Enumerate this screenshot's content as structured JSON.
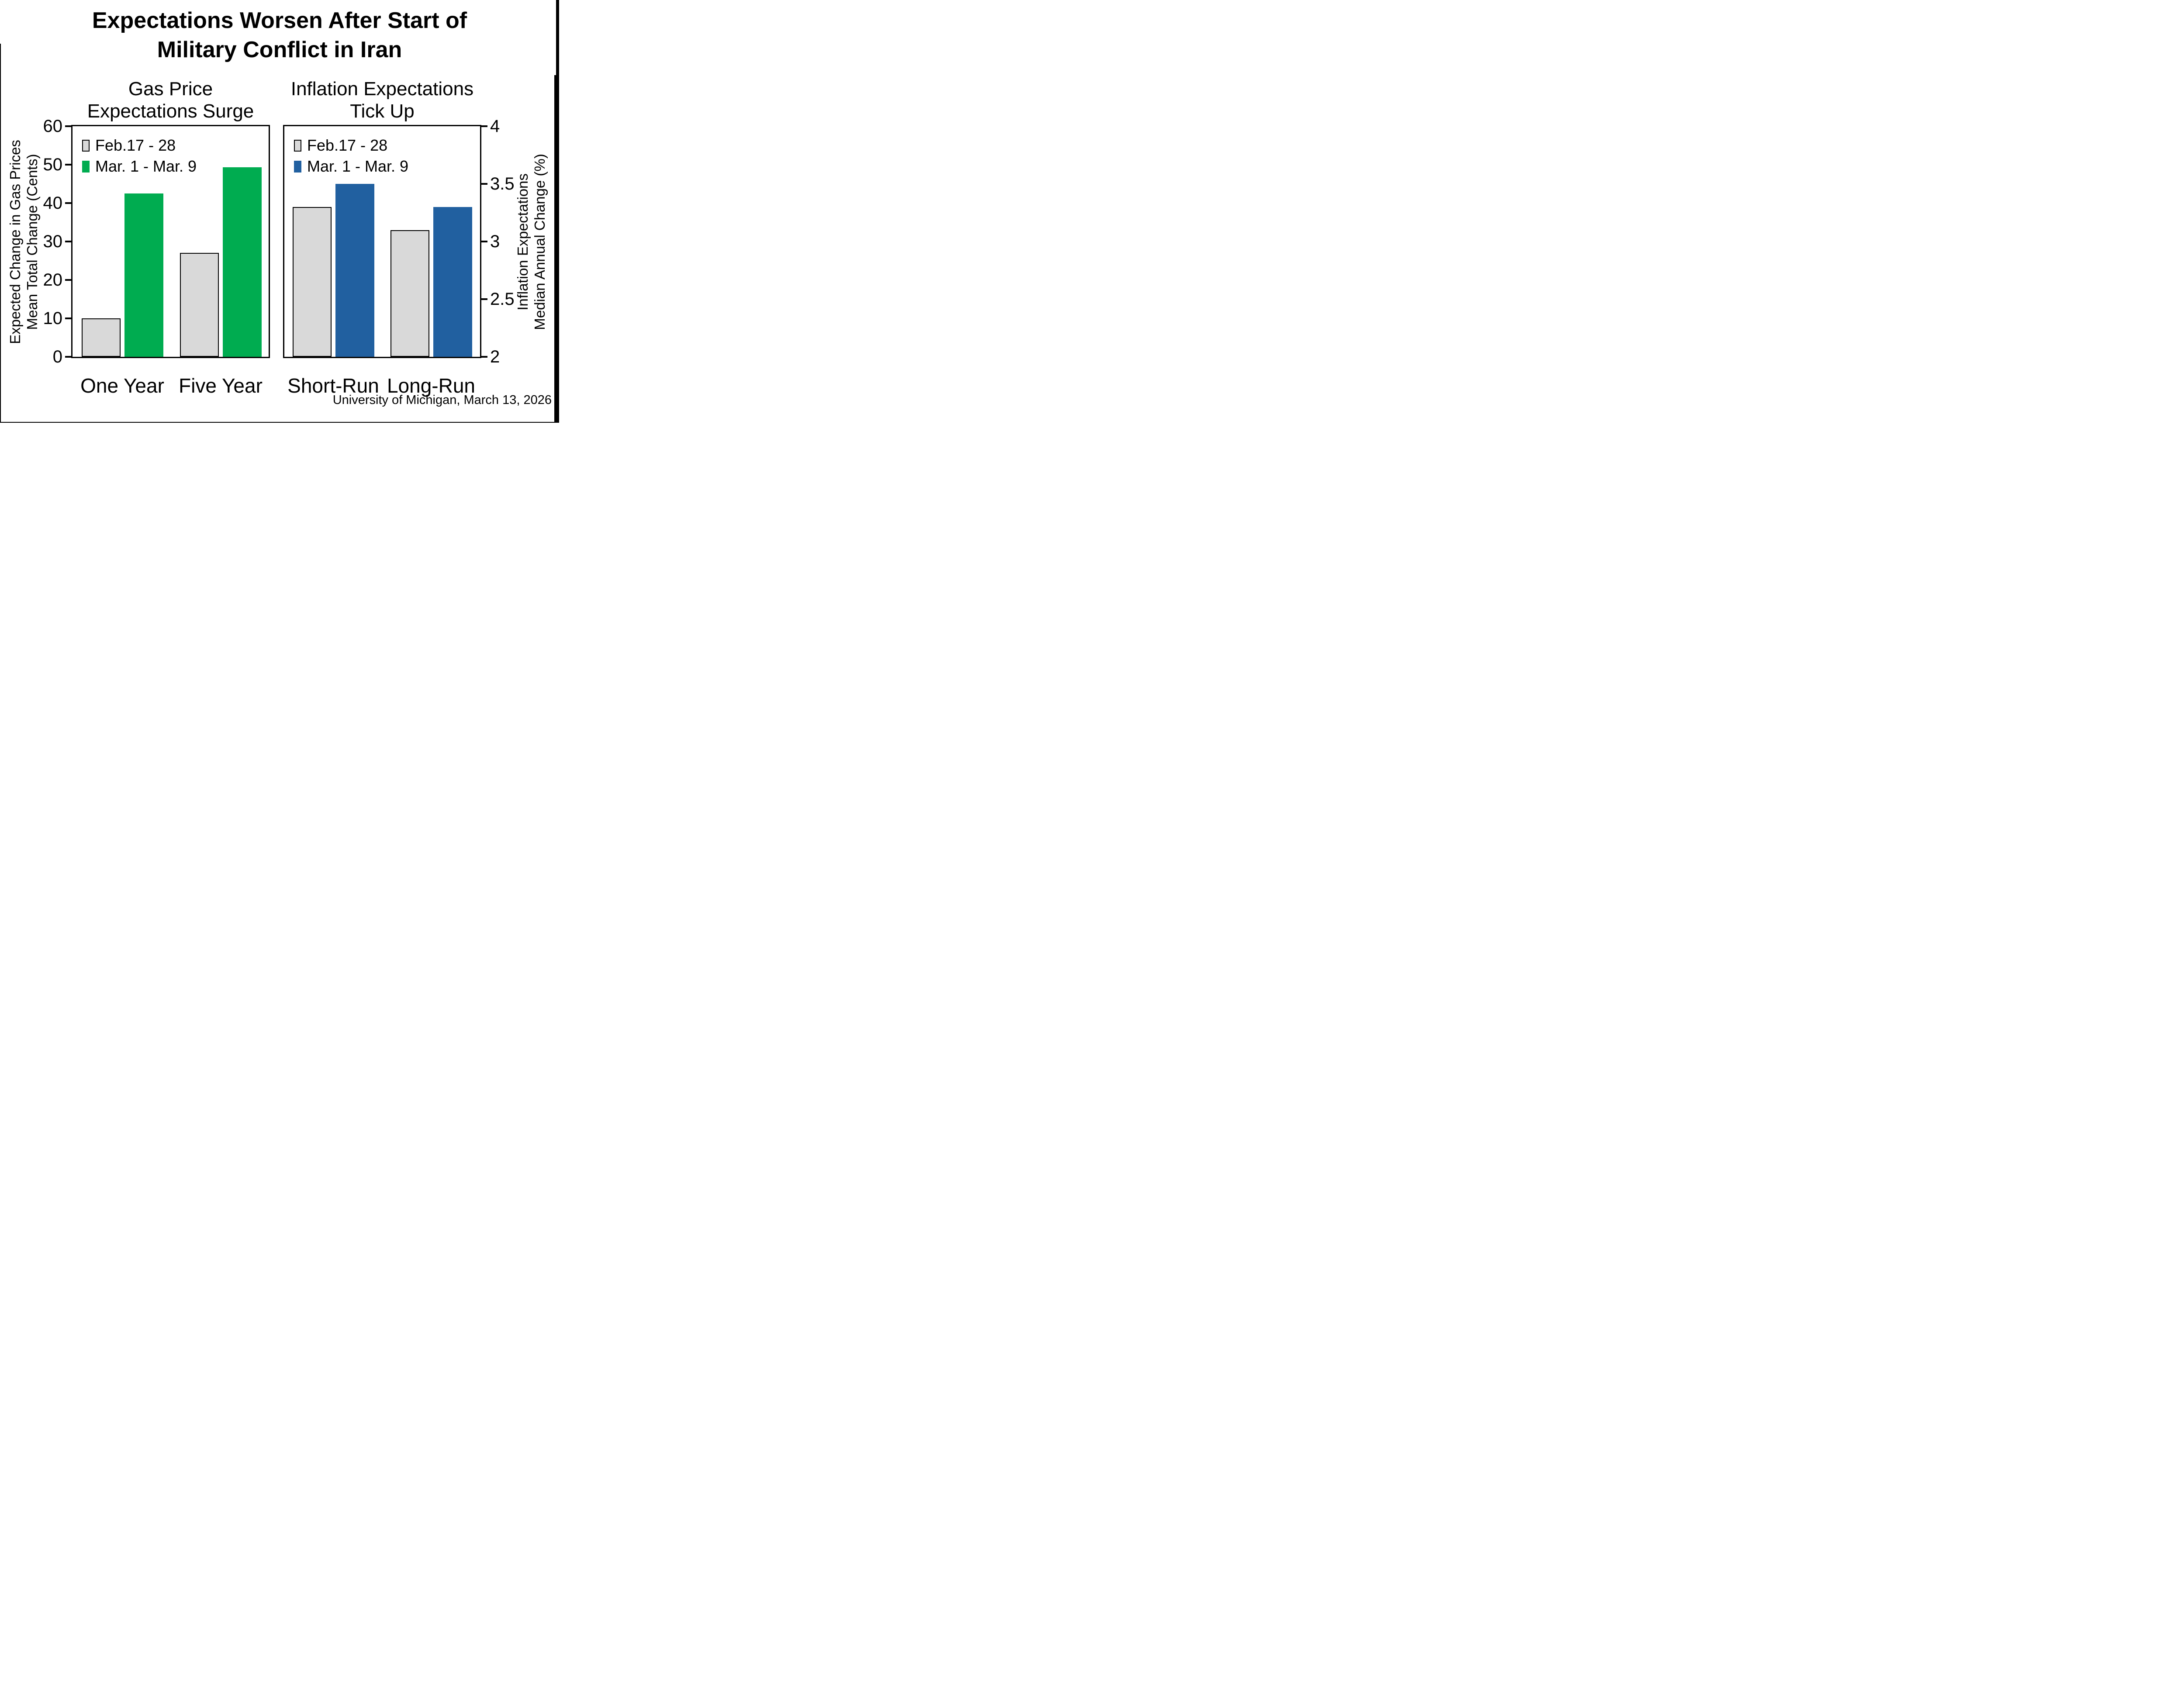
{
  "header": {
    "title_line1": "Expectations Worsen After Start of",
    "title_line2": "Military Conflict in Iran"
  },
  "footer": {
    "source": "University of Michigan, March 13, 2026"
  },
  "colors": {
    "feb_gray": "#D9D9D9",
    "mar_green": "#00AC50",
    "mar_blue": "#2160A0",
    "outline_black": "#000000"
  },
  "chart_data": [
    {
      "type": "bar",
      "title_lines": [
        "Gas Price",
        "Expectations Surge"
      ],
      "axis_label_lines": [
        "Expected Change in Gas Prices",
        "Mean Total Change (Cents)"
      ],
      "axis_side": "left",
      "categories": [
        "One Year",
        "Five Year"
      ],
      "series": [
        {
          "name": "Feb.17 - 28",
          "color": "#D9D9D9",
          "outlined": true,
          "values": [
            10,
            27
          ]
        },
        {
          "name": "Mar. 1 - Mar. 9",
          "color": "#00AC50",
          "outlined": false,
          "values": [
            42.5,
            49.3
          ]
        }
      ],
      "ylim": [
        0,
        60
      ],
      "yticks": [
        "0",
        "10",
        "20",
        "30",
        "40",
        "50",
        "60"
      ],
      "legend_position": "top-left",
      "grid": false
    },
    {
      "type": "bar",
      "title_lines": [
        "Inflation Expectations",
        "Tick Up"
      ],
      "axis_label_lines": [
        "Inflation Expectations",
        "Median Annual Change (%)"
      ],
      "axis_side": "right",
      "categories": [
        "Short-Run",
        "Long-Run"
      ],
      "series": [
        {
          "name": "Feb.17 - 28",
          "color": "#D9D9D9",
          "outlined": true,
          "values": [
            3.3,
            3.1
          ]
        },
        {
          "name": "Mar. 1 - Mar. 9",
          "color": "#2160A0",
          "outlined": false,
          "values": [
            3.5,
            3.3
          ]
        }
      ],
      "ylim": [
        2,
        4
      ],
      "yticks": [
        "2",
        "2.5",
        "3",
        "3.5",
        "4"
      ],
      "legend_position": "top-left",
      "grid": false
    }
  ]
}
